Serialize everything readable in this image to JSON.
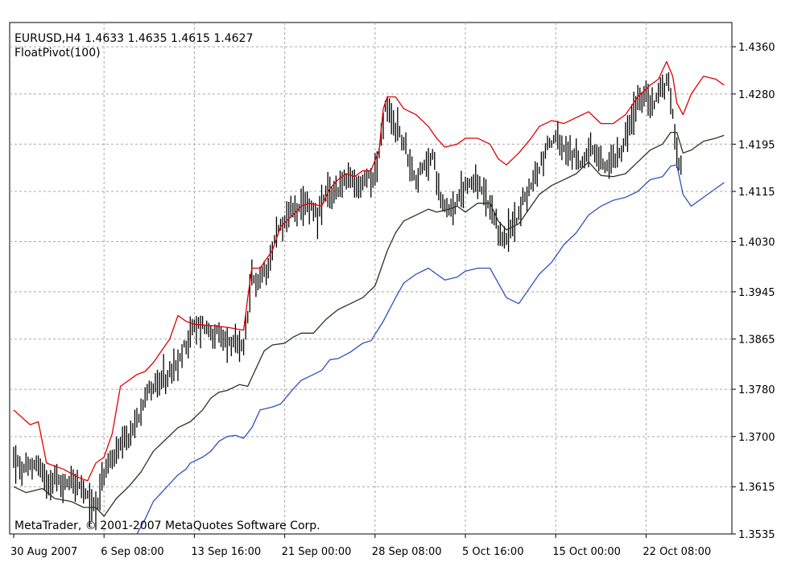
{
  "chart_data": {
    "type": "line",
    "title": "EURUSD,H4  1.4633 1.4635 1.4615 1.4627",
    "indicator": "FloatPivot(100)",
    "copyright": "MetaTrader, © 2001-2007 MetaQuotes Software Corp.",
    "ylim": [
      1.3535,
      1.4401
    ],
    "grid": true,
    "y_ticks": [
      "1.4360",
      "1.4280",
      "1.4195",
      "1.4115",
      "1.4030",
      "1.3945",
      "1.3865",
      "1.3780",
      "1.3700",
      "1.3615",
      "1.3535"
    ],
    "x_ticks": [
      "30 Aug 2007",
      "6 Sep 08:00",
      "13 Sep 16:00",
      "21 Sep 00:00",
      "28 Sep 08:00",
      "5 Oct 16:00",
      "15 Oct 00:00",
      "22 Oct 08:00"
    ],
    "x_tick_index": [
      0,
      44,
      88,
      132,
      176,
      220,
      264,
      308
    ],
    "bar_count": 325,
    "series": [
      {
        "name": "upper",
        "color": "#e00000",
        "points": [
          [
            0,
            1.3745
          ],
          [
            8,
            1.372
          ],
          [
            12,
            1.3725
          ],
          [
            16,
            1.3655
          ],
          [
            24,
            1.3645
          ],
          [
            32,
            1.363
          ],
          [
            36,
            1.3625
          ],
          [
            40,
            1.3655
          ],
          [
            44,
            1.3665
          ],
          [
            48,
            1.3705
          ],
          [
            52,
            1.3785
          ],
          [
            56,
            1.3795
          ],
          [
            60,
            1.3805
          ],
          [
            64,
            1.381
          ],
          [
            68,
            1.3825
          ],
          [
            72,
            1.3845
          ],
          [
            76,
            1.3865
          ],
          [
            80,
            1.3905
          ],
          [
            84,
            1.3895
          ],
          [
            88,
            1.389
          ],
          [
            96,
            1.3888
          ],
          [
            104,
            1.3885
          ],
          [
            112,
            1.388
          ],
          [
            114,
            1.3935
          ],
          [
            116,
            1.3985
          ],
          [
            120,
            1.3985
          ],
          [
            126,
            1.4015
          ],
          [
            130,
            1.4055
          ],
          [
            136,
            1.4075
          ],
          [
            140,
            1.409
          ],
          [
            144,
            1.4095
          ],
          [
            150,
            1.409
          ],
          [
            154,
            1.412
          ],
          [
            158,
            1.4135
          ],
          [
            162,
            1.4145
          ],
          [
            166,
            1.414
          ],
          [
            170,
            1.415
          ],
          [
            174,
            1.415
          ],
          [
            178,
            1.4185
          ],
          [
            180,
            1.4255
          ],
          [
            182,
            1.4275
          ],
          [
            186,
            1.4275
          ],
          [
            190,
            1.4255
          ],
          [
            196,
            1.4245
          ],
          [
            202,
            1.4225
          ],
          [
            206,
            1.4205
          ],
          [
            210,
            1.419
          ],
          [
            216,
            1.4195
          ],
          [
            220,
            1.4205
          ],
          [
            226,
            1.4205
          ],
          [
            232,
            1.4195
          ],
          [
            236,
            1.417
          ],
          [
            240,
            1.416
          ],
          [
            246,
            1.418
          ],
          [
            252,
            1.4205
          ],
          [
            256,
            1.4225
          ],
          [
            262,
            1.4235
          ],
          [
            268,
            1.423
          ],
          [
            274,
            1.424
          ],
          [
            280,
            1.425
          ],
          [
            286,
            1.423
          ],
          [
            292,
            1.423
          ],
          [
            298,
            1.4245
          ],
          [
            304,
            1.4275
          ],
          [
            310,
            1.4295
          ],
          [
            314,
            1.4305
          ],
          [
            318,
            1.4335
          ],
          [
            321,
            1.431
          ],
          [
            323,
            1.4265
          ],
          [
            326,
            1.4245
          ],
          [
            330,
            1.428
          ],
          [
            336,
            1.431
          ],
          [
            342,
            1.4305
          ],
          [
            346,
            1.4295
          ],
          [
            350,
            1.429
          ]
        ]
      },
      {
        "name": "middle",
        "color": "#1e3a22",
        "points": [
          [
            0,
            1.3615
          ],
          [
            6,
            1.3605
          ],
          [
            14,
            1.3612
          ],
          [
            20,
            1.3595
          ],
          [
            28,
            1.359
          ],
          [
            34,
            1.358
          ],
          [
            40,
            1.358
          ],
          [
            44,
            1.3565
          ],
          [
            50,
            1.3595
          ],
          [
            56,
            1.3615
          ],
          [
            62,
            1.364
          ],
          [
            68,
            1.3675
          ],
          [
            74,
            1.3695
          ],
          [
            80,
            1.3715
          ],
          [
            86,
            1.3725
          ],
          [
            92,
            1.3745
          ],
          [
            96,
            1.3765
          ],
          [
            100,
            1.3775
          ],
          [
            104,
            1.3778
          ],
          [
            110,
            1.3788
          ],
          [
            114,
            1.3785
          ],
          [
            118,
            1.3815
          ],
          [
            122,
            1.3845
          ],
          [
            126,
            1.3855
          ],
          [
            132,
            1.3858
          ],
          [
            136,
            1.3868
          ],
          [
            140,
            1.3875
          ],
          [
            146,
            1.3875
          ],
          [
            152,
            1.3898
          ],
          [
            158,
            1.3915
          ],
          [
            164,
            1.3925
          ],
          [
            170,
            1.3935
          ],
          [
            176,
            1.3955
          ],
          [
            182,
            1.4015
          ],
          [
            186,
            1.4045
          ],
          [
            190,
            1.4065
          ],
          [
            196,
            1.4075
          ],
          [
            202,
            1.4085
          ],
          [
            206,
            1.408
          ],
          [
            212,
            1.4085
          ],
          [
            216,
            1.409
          ],
          [
            220,
            1.408
          ],
          [
            226,
            1.4095
          ],
          [
            232,
            1.4095
          ],
          [
            236,
            1.4065
          ],
          [
            240,
            1.405
          ],
          [
            246,
            1.406
          ],
          [
            252,
            1.409
          ],
          [
            256,
            1.411
          ],
          [
            262,
            1.4125
          ],
          [
            268,
            1.4135
          ],
          [
            274,
            1.4145
          ],
          [
            280,
            1.4165
          ],
          [
            286,
            1.4142
          ],
          [
            292,
            1.414
          ],
          [
            298,
            1.4145
          ],
          [
            304,
            1.4165
          ],
          [
            310,
            1.4185
          ],
          [
            316,
            1.4195
          ],
          [
            320,
            1.4215
          ],
          [
            323,
            1.4215
          ],
          [
            326,
            1.418
          ],
          [
            330,
            1.4185
          ],
          [
            336,
            1.42
          ],
          [
            342,
            1.4205
          ],
          [
            346,
            1.421
          ],
          [
            350,
            1.421
          ]
        ]
      },
      {
        "name": "lower",
        "color": "#3050c0",
        "points": [
          [
            60,
            1.3535
          ],
          [
            64,
            1.356
          ],
          [
            68,
            1.359
          ],
          [
            72,
            1.3605
          ],
          [
            76,
            1.362
          ],
          [
            80,
            1.3635
          ],
          [
            84,
            1.3645
          ],
          [
            86,
            1.3655
          ],
          [
            92,
            1.3665
          ],
          [
            96,
            1.3675
          ],
          [
            100,
            1.3692
          ],
          [
            104,
            1.37
          ],
          [
            108,
            1.3702
          ],
          [
            112,
            1.3697
          ],
          [
            116,
            1.3715
          ],
          [
            120,
            1.3745
          ],
          [
            126,
            1.375
          ],
          [
            130,
            1.3755
          ],
          [
            136,
            1.378
          ],
          [
            140,
            1.3795
          ],
          [
            146,
            1.3805
          ],
          [
            150,
            1.3812
          ],
          [
            154,
            1.383
          ],
          [
            158,
            1.3832
          ],
          [
            164,
            1.3843
          ],
          [
            170,
            1.3858
          ],
          [
            174,
            1.3862
          ],
          [
            180,
            1.3895
          ],
          [
            186,
            1.3935
          ],
          [
            190,
            1.396
          ],
          [
            196,
            1.3975
          ],
          [
            202,
            1.3985
          ],
          [
            206,
            1.3975
          ],
          [
            210,
            1.3965
          ],
          [
            216,
            1.397
          ],
          [
            220,
            1.398
          ],
          [
            226,
            1.3985
          ],
          [
            232,
            1.3985
          ],
          [
            236,
            1.396
          ],
          [
            240,
            1.3935
          ],
          [
            246,
            1.3925
          ],
          [
            252,
            1.3955
          ],
          [
            256,
            1.3975
          ],
          [
            262,
            1.3995
          ],
          [
            268,
            1.4025
          ],
          [
            274,
            1.4045
          ],
          [
            280,
            1.4075
          ],
          [
            286,
            1.409
          ],
          [
            292,
            1.41
          ],
          [
            298,
            1.4105
          ],
          [
            304,
            1.4115
          ],
          [
            310,
            1.4135
          ],
          [
            316,
            1.414
          ],
          [
            320,
            1.4158
          ],
          [
            323,
            1.416
          ],
          [
            326,
            1.411
          ],
          [
            330,
            1.409
          ],
          [
            336,
            1.4105
          ],
          [
            342,
            1.412
          ],
          [
            346,
            1.413
          ],
          [
            350,
            1.413
          ]
        ]
      }
    ],
    "ohlc_anchors": [
      [
        0,
        1.3665
      ],
      [
        4,
        1.364
      ],
      [
        8,
        1.365
      ],
      [
        12,
        1.3655
      ],
      [
        16,
        1.3625
      ],
      [
        20,
        1.363
      ],
      [
        24,
        1.3615
      ],
      [
        28,
        1.363
      ],
      [
        32,
        1.3615
      ],
      [
        36,
        1.3595
      ],
      [
        40,
        1.358
      ],
      [
        44,
        1.3635
      ],
      [
        48,
        1.3665
      ],
      [
        52,
        1.368
      ],
      [
        56,
        1.3695
      ],
      [
        60,
        1.3725
      ],
      [
        64,
        1.3775
      ],
      [
        68,
        1.3785
      ],
      [
        72,
        1.379
      ],
      [
        76,
        1.3805
      ],
      [
        80,
        1.382
      ],
      [
        84,
        1.386
      ],
      [
        88,
        1.3885
      ],
      [
        92,
        1.389
      ],
      [
        96,
        1.3878
      ],
      [
        100,
        1.387
      ],
      [
        104,
        1.386
      ],
      [
        108,
        1.3855
      ],
      [
        112,
        1.3845
      ],
      [
        116,
        1.3965
      ],
      [
        120,
        1.3965
      ],
      [
        124,
        1.3995
      ],
      [
        128,
        1.4045
      ],
      [
        132,
        1.4065
      ],
      [
        136,
        1.4085
      ],
      [
        140,
        1.408
      ],
      [
        144,
        1.4095
      ],
      [
        148,
        1.4075
      ],
      [
        152,
        1.4105
      ],
      [
        156,
        1.4115
      ],
      [
        160,
        1.413
      ],
      [
        164,
        1.4135
      ],
      [
        168,
        1.412
      ],
      [
        172,
        1.414
      ],
      [
        176,
        1.4145
      ],
      [
        178,
        1.418
      ],
      [
        181,
        1.4255
      ],
      [
        184,
        1.4235
      ],
      [
        188,
        1.4215
      ],
      [
        192,
        1.4175
      ],
      [
        196,
        1.4135
      ],
      [
        200,
        1.4155
      ],
      [
        204,
        1.4175
      ],
      [
        208,
        1.4105
      ],
      [
        212,
        1.4085
      ],
      [
        216,
        1.4095
      ],
      [
        220,
        1.4125
      ],
      [
        224,
        1.4135
      ],
      [
        228,
        1.4115
      ],
      [
        232,
        1.4085
      ],
      [
        236,
        1.4045
      ],
      [
        240,
        1.4035
      ],
      [
        244,
        1.4065
      ],
      [
        248,
        1.4095
      ],
      [
        252,
        1.4125
      ],
      [
        256,
        1.4155
      ],
      [
        260,
        1.4195
      ],
      [
        264,
        1.4205
      ],
      [
        268,
        1.4185
      ],
      [
        272,
        1.4175
      ],
      [
        276,
        1.4165
      ],
      [
        280,
        1.4185
      ],
      [
        284,
        1.4175
      ],
      [
        288,
        1.4155
      ],
      [
        292,
        1.417
      ],
      [
        296,
        1.419
      ],
      [
        300,
        1.4225
      ],
      [
        304,
        1.4265
      ],
      [
        308,
        1.4275
      ],
      [
        312,
        1.4265
      ],
      [
        316,
        1.4295
      ],
      [
        319,
        1.4295
      ],
      [
        321,
        1.4255
      ],
      [
        323,
        1.4175
      ],
      [
        326,
        1.416
      ],
      [
        330,
        1.4195
      ],
      [
        334,
        1.422
      ],
      [
        338,
        1.424
      ],
      [
        342,
        1.4225
      ],
      [
        346,
        1.4215
      ],
      [
        350,
        1.4215
      ]
    ]
  }
}
